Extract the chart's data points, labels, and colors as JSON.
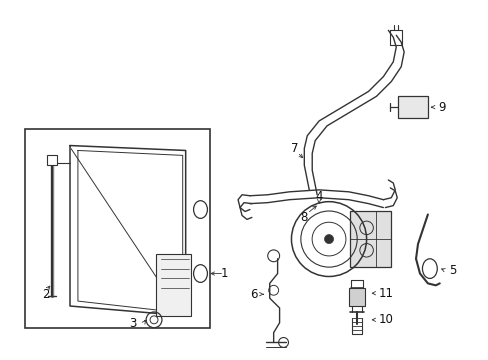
{
  "bg_color": "#ffffff",
  "line_color": "#333333",
  "label_color": "#111111",
  "fig_width": 4.89,
  "fig_height": 3.6,
  "dpi": 100
}
